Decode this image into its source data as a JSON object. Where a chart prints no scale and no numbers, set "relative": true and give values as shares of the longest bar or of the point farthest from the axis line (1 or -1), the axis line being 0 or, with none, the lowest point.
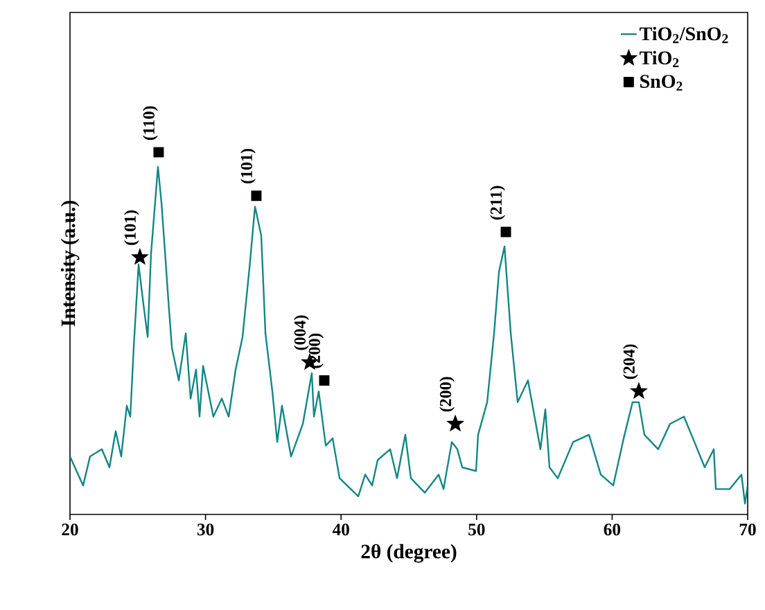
{
  "chart_data": {
    "type": "line",
    "relative": true,
    "xlabel": "2θ (degree)",
    "ylabel": "Intensity (a.u.)",
    "xlim": [
      20,
      70
    ],
    "xticks": [
      20,
      30,
      40,
      50,
      60,
      70
    ],
    "legend": "top right",
    "grid": false,
    "series": [
      {
        "name": "TiO$_{2}$/SnO$_{2}$",
        "color": "#138686",
        "marker": "none",
        "line_style": "solid",
        "x": [
          20.0,
          20.97,
          21.48,
          22.35,
          22.91,
          23.37,
          23.78,
          24.19,
          24.45,
          24.7,
          25.06,
          25.42,
          25.73,
          25.98,
          26.49,
          26.75,
          27.0,
          27.26,
          27.52,
          28.03,
          28.54,
          28.9,
          29.3,
          29.56,
          29.82,
          30.58,
          31.2,
          31.71,
          32.22,
          32.73,
          33.24,
          33.65,
          34.11,
          34.42,
          34.93,
          35.29,
          35.64,
          36.31,
          37.18,
          37.84,
          38.0,
          38.35,
          38.87,
          39.38,
          39.89,
          41.27,
          41.78,
          42.29,
          42.7,
          43.62,
          44.13,
          44.74,
          45.15,
          46.18,
          47.2,
          47.56,
          48.17,
          48.58,
          48.94,
          49.96,
          50.11,
          50.78,
          51.29,
          51.65,
          52.06,
          52.52,
          53.03,
          53.79,
          54.71,
          55.07,
          55.38,
          55.99,
          57.12,
          58.29,
          59.16,
          60.08,
          60.85,
          61.51,
          61.97,
          62.38,
          63.4,
          64.27,
          65.3,
          65.96,
          66.83,
          67.5,
          67.65,
          68.67,
          69.54,
          69.8,
          70.0
        ],
        "values": [
          0.16,
          0.08,
          0.16,
          0.18,
          0.13,
          0.23,
          0.16,
          0.3,
          0.27,
          0.46,
          0.69,
          0.58,
          0.49,
          0.72,
          0.96,
          0.86,
          0.73,
          0.59,
          0.46,
          0.37,
          0.5,
          0.32,
          0.4,
          0.27,
          0.41,
          0.27,
          0.32,
          0.27,
          0.4,
          0.49,
          0.68,
          0.85,
          0.77,
          0.5,
          0.34,
          0.2,
          0.3,
          0.16,
          0.25,
          0.39,
          0.27,
          0.34,
          0.19,
          0.21,
          0.1,
          0.05,
          0.11,
          0.08,
          0.15,
          0.18,
          0.1,
          0.22,
          0.1,
          0.06,
          0.11,
          0.07,
          0.2,
          0.18,
          0.13,
          0.12,
          0.22,
          0.31,
          0.5,
          0.67,
          0.74,
          0.5,
          0.31,
          0.37,
          0.18,
          0.29,
          0.13,
          0.1,
          0.2,
          0.22,
          0.11,
          0.08,
          0.21,
          0.31,
          0.31,
          0.22,
          0.18,
          0.25,
          0.27,
          0.21,
          0.13,
          0.18,
          0.07,
          0.07,
          0.11,
          0.03,
          0.08
        ]
      },
      {
        "name": "TiO$_{2}$",
        "type": "scatter",
        "color": "#000000",
        "marker": "star",
        "x": [
          25.16,
          37.69,
          48.43,
          61.97
        ],
        "values": [
          0.71,
          0.42,
          0.25,
          0.34
        ]
      },
      {
        "name": "SnO$_{2}$",
        "type": "scatter",
        "color": "#000000",
        "marker": "square",
        "x": [
          26.54,
          33.75,
          38.76,
          52.16
        ],
        "values": [
          1.0,
          0.88,
          0.37,
          0.78
        ]
      }
    ],
    "annotations": [
      {
        "text": "(101)",
        "x": 25.16,
        "y": 0.71
      },
      {
        "text": "(110)",
        "x": 26.54,
        "y": 1.0
      },
      {
        "text": "(101)",
        "x": 33.75,
        "y": 0.88
      },
      {
        "text": "(004)",
        "x": 37.69,
        "y": 0.42
      },
      {
        "text": "(200)",
        "x": 38.76,
        "y": 0.37
      },
      {
        "text": "(200)",
        "x": 48.43,
        "y": 0.25
      },
      {
        "text": "(211)",
        "x": 52.16,
        "y": 0.78
      },
      {
        "text": "(204)",
        "x": 61.97,
        "y": 0.34
      }
    ]
  }
}
